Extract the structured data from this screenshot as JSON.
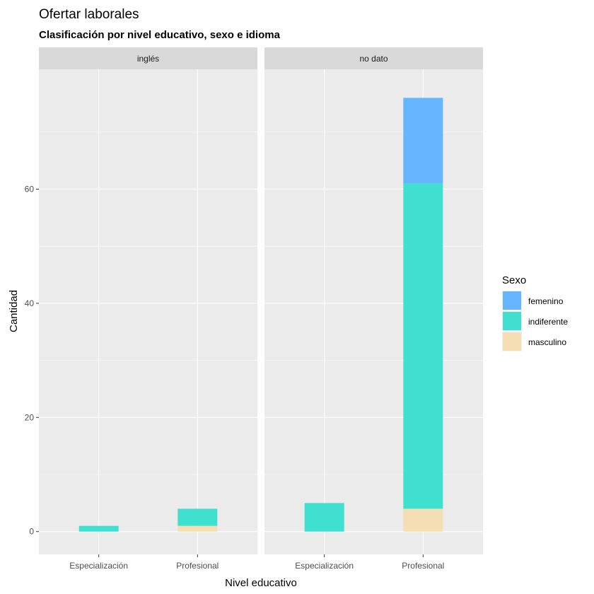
{
  "chart_data": {
    "type": "bar",
    "stacked": true,
    "faceted": true,
    "title": "Ofertar laborales",
    "subtitle": "Clasificación por nivel educativo, sexo e idioma",
    "xlabel": "Nivel educativo",
    "ylabel": "Cantidad",
    "categories": [
      "Especialización",
      "Profesional"
    ],
    "yticks": [
      0,
      20,
      40,
      60
    ],
    "ylim": [
      -4,
      81
    ],
    "grid": true,
    "legend": {
      "title": "Sexo",
      "position": "right",
      "entries": [
        "femenino",
        "indiferente",
        "masculino"
      ]
    },
    "colors": {
      "femenino": "#66b5ff",
      "indiferente": "#40e0d0",
      "masculino": "#f5deb3"
    },
    "stack_order": [
      "masculino",
      "indiferente",
      "femenino"
    ],
    "panels": [
      {
        "name": "inglés",
        "series": [
          {
            "name": "femenino",
            "values": [
              0,
              0
            ]
          },
          {
            "name": "indiferente",
            "values": [
              1,
              3
            ]
          },
          {
            "name": "masculino",
            "values": [
              0,
              1
            ]
          }
        ]
      },
      {
        "name": "no dato",
        "series": [
          {
            "name": "femenino",
            "values": [
              0,
              15
            ]
          },
          {
            "name": "indiferente",
            "values": [
              5,
              57
            ]
          },
          {
            "name": "masculino",
            "values": [
              0,
              4
            ]
          }
        ]
      }
    ]
  }
}
